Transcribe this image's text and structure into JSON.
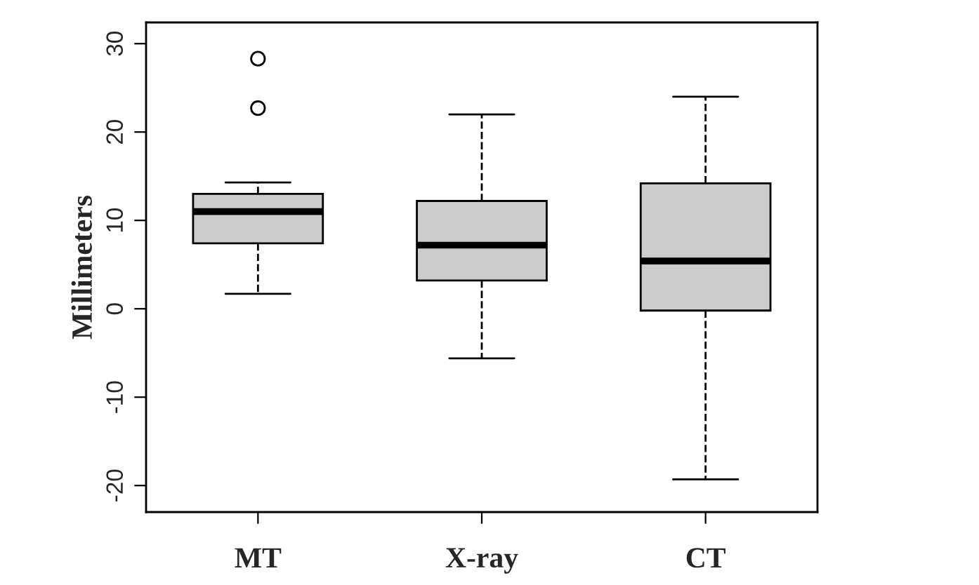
{
  "chart_data": {
    "type": "box",
    "ylabel": "Millimeters",
    "categories": [
      "MT",
      "X-ray",
      "CT"
    ],
    "boxes": [
      {
        "low": 1.7,
        "q1": 7.4,
        "median": 11.0,
        "q3": 13.0,
        "high": 14.3,
        "outliers": [
          28.3,
          22.7
        ]
      },
      {
        "low": -5.6,
        "q1": 3.2,
        "median": 7.2,
        "q3": 12.2,
        "high": 22.0
      },
      {
        "low": -19.3,
        "q1": -0.2,
        "median": 5.4,
        "q3": 14.2,
        "high": 24.0
      }
    ],
    "color": "#cccccc",
    "ylim": [
      -23,
      32.4
    ],
    "yticks": [
      -20,
      -10,
      0,
      10,
      20,
      30
    ],
    "grid": false,
    "line_style": "dashed"
  }
}
